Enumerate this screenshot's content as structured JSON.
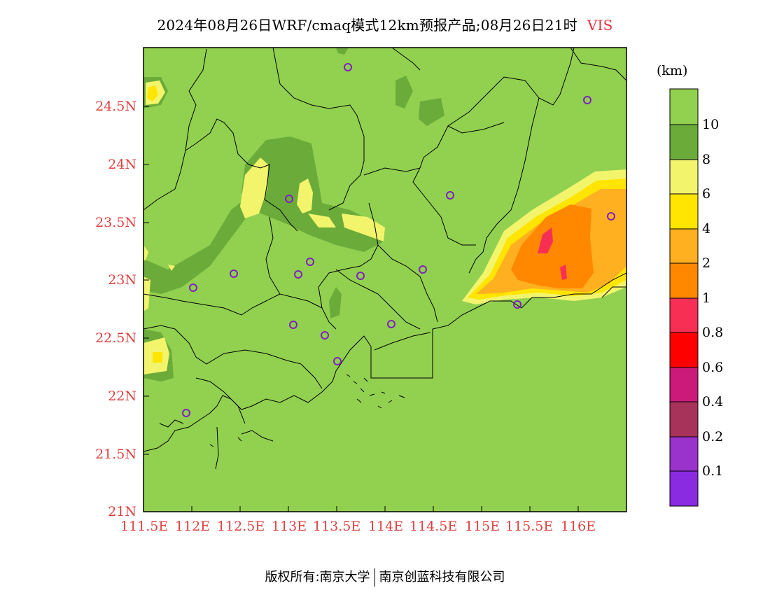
{
  "title": {
    "text": "2024年08月26日WRF/cmaq模式12km预报产品;08月26日21时",
    "variable": "VIS"
  },
  "axes": {
    "x_ticks": [
      "111.5E",
      "112E",
      "112.5E",
      "113E",
      "113.5E",
      "114E",
      "114.5E",
      "115E",
      "115.5E",
      "116E"
    ],
    "y_ticks": [
      "24.5N",
      "24N",
      "23.5N",
      "23N",
      "22.5N",
      "22N",
      "21.5N",
      "21N"
    ]
  },
  "legend": {
    "unit": "(km)",
    "labels": [
      "10",
      "8",
      "6",
      "4",
      "2",
      "1",
      "0.8",
      "0.6",
      "0.4",
      "0.2",
      "0.1"
    ],
    "colors": [
      "#92d050",
      "#6aab3a",
      "#f2f56c",
      "#ffe500",
      "#ffb020",
      "#ff8800",
      "#f82f55",
      "#ff0000",
      "#cc1a7a",
      "#a8335a",
      "#9a33cc",
      "#8a2be2"
    ]
  },
  "colors": {
    "background_field": "#92d050",
    "station_marker": "#8020c0",
    "tick_label": "#e04040"
  },
  "footer": {
    "left": "版权所有:南京大学",
    "right": "南京创蓝科技有限公司"
  }
}
